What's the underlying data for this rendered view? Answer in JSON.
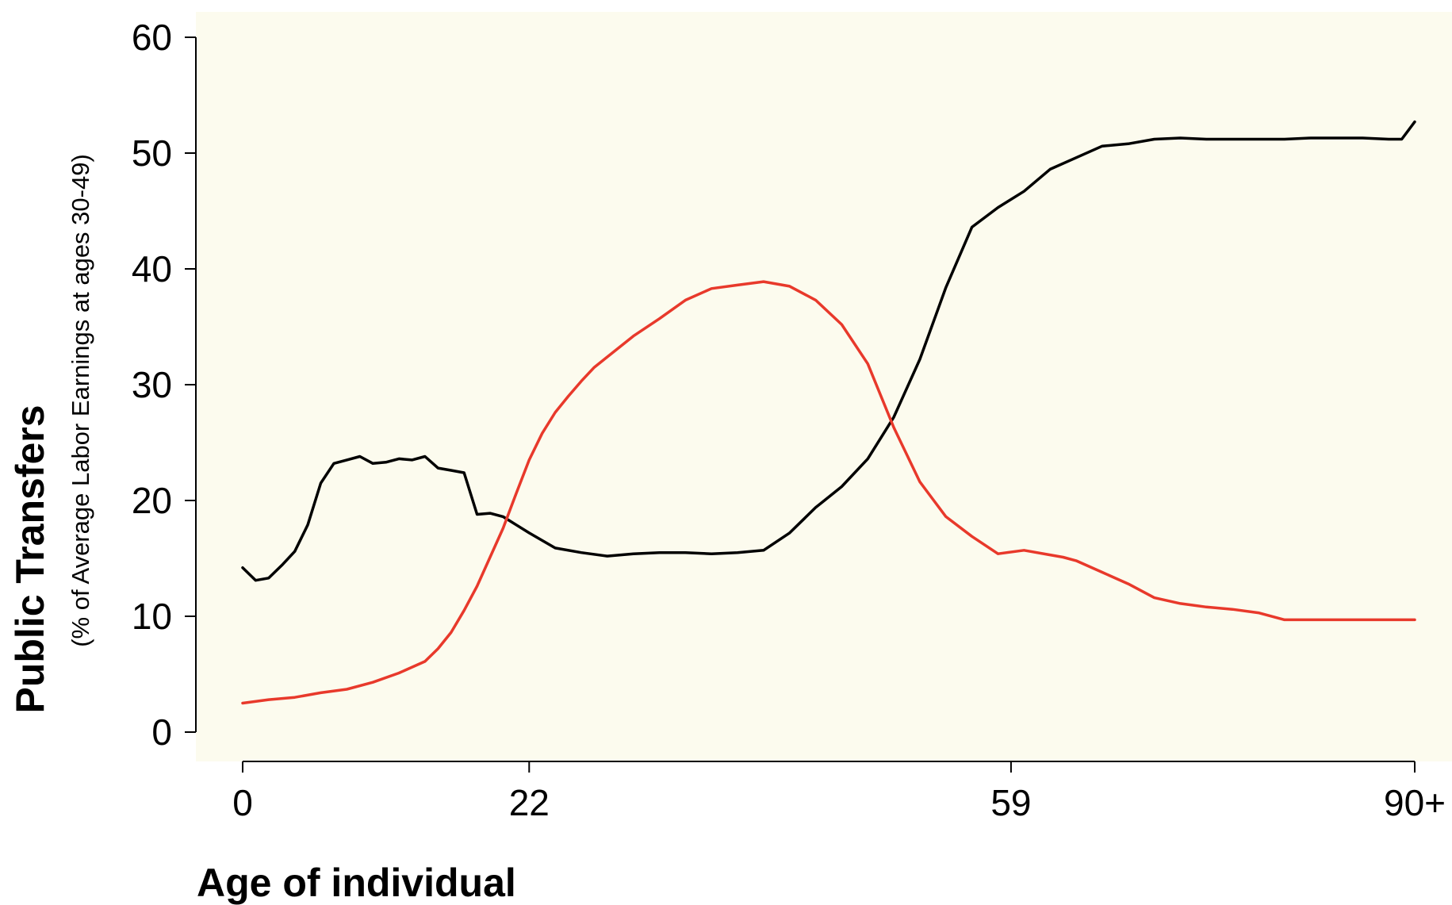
{
  "chart_data": {
    "type": "line",
    "title": "",
    "xlabel": "Age of individual",
    "ylabel": "Public Transfers",
    "ylabel_sub": "(% of Average Labor Earnings at ages 30-49)",
    "xlim": [
      0,
      90
    ],
    "ylim": [
      0,
      60
    ],
    "x_ticks": [
      0,
      22,
      59,
      90
    ],
    "x_tick_labels": [
      "0",
      "22",
      "59",
      "90+"
    ],
    "y_ticks": [
      0,
      10,
      20,
      30,
      40,
      50,
      60
    ],
    "y_tick_labels": [
      "0",
      "10",
      "20",
      "30",
      "40",
      "50",
      "60"
    ],
    "grid": false,
    "legend": "none",
    "colors": {
      "plot_background": "#fcfbee",
      "series_1": "#000000",
      "series_2": "#e8392b"
    },
    "series": [
      {
        "color": "#000000",
        "x": [
          0,
          1,
          2,
          3,
          4,
          5,
          6,
          7,
          8,
          9,
          10,
          11,
          12,
          13,
          14,
          15,
          16,
          17,
          18,
          19,
          20,
          21,
          22,
          24,
          26,
          28,
          30,
          32,
          34,
          36,
          38,
          40,
          42,
          44,
          46,
          48,
          50,
          52,
          54,
          56,
          58,
          60,
          62,
          64,
          66,
          68,
          70,
          72,
          74,
          76,
          78,
          80,
          82,
          84,
          86,
          88,
          89,
          90
        ],
        "values": [
          14.2,
          13.1,
          13.3,
          14.4,
          15.6,
          17.9,
          21.5,
          23.2,
          23.5,
          23.8,
          23.2,
          23.3,
          23.6,
          23.5,
          23.8,
          22.8,
          22.6,
          22.4,
          18.8,
          18.9,
          18.6,
          17.9,
          17.2,
          15.9,
          15.5,
          15.2,
          15.4,
          15.5,
          15.5,
          15.4,
          15.5,
          15.7,
          17.2,
          19.4,
          21.2,
          23.6,
          27.2,
          32.2,
          38.4,
          43.6,
          45.3,
          46.7,
          48.6,
          49.6,
          50.6,
          50.8,
          51.2,
          51.3,
          51.2,
          51.2,
          51.2,
          51.2,
          51.3,
          51.3,
          51.3,
          51.2,
          51.2,
          52.7
        ]
      },
      {
        "color": "#e8392b",
        "x": [
          0,
          2,
          4,
          6,
          8,
          10,
          12,
          14,
          15,
          16,
          17,
          18,
          19,
          20,
          21,
          22,
          23,
          24,
          25,
          26,
          27,
          28,
          30,
          32,
          34,
          36,
          38,
          40,
          42,
          44,
          46,
          48,
          50,
          52,
          53,
          54,
          56,
          58,
          60,
          62,
          63,
          64,
          66,
          68,
          70,
          72,
          74,
          76,
          78,
          80,
          82,
          84,
          86,
          88,
          90
        ],
        "values": [
          2.5,
          2.8,
          3.0,
          3.4,
          3.7,
          4.3,
          5.1,
          6.1,
          7.2,
          8.6,
          10.5,
          12.6,
          15.1,
          17.6,
          20.6,
          23.5,
          25.8,
          27.6,
          29.0,
          30.3,
          31.5,
          32.4,
          34.2,
          35.7,
          37.3,
          38.3,
          38.6,
          38.9,
          38.5,
          37.3,
          35.2,
          31.8,
          26.3,
          21.6,
          20.1,
          18.6,
          16.9,
          15.4,
          15.7,
          15.3,
          15.1,
          14.8,
          13.8,
          12.8,
          11.6,
          11.1,
          10.8,
          10.6,
          10.3,
          9.7,
          9.7,
          9.7,
          9.7,
          9.7,
          9.7
        ]
      }
    ]
  }
}
